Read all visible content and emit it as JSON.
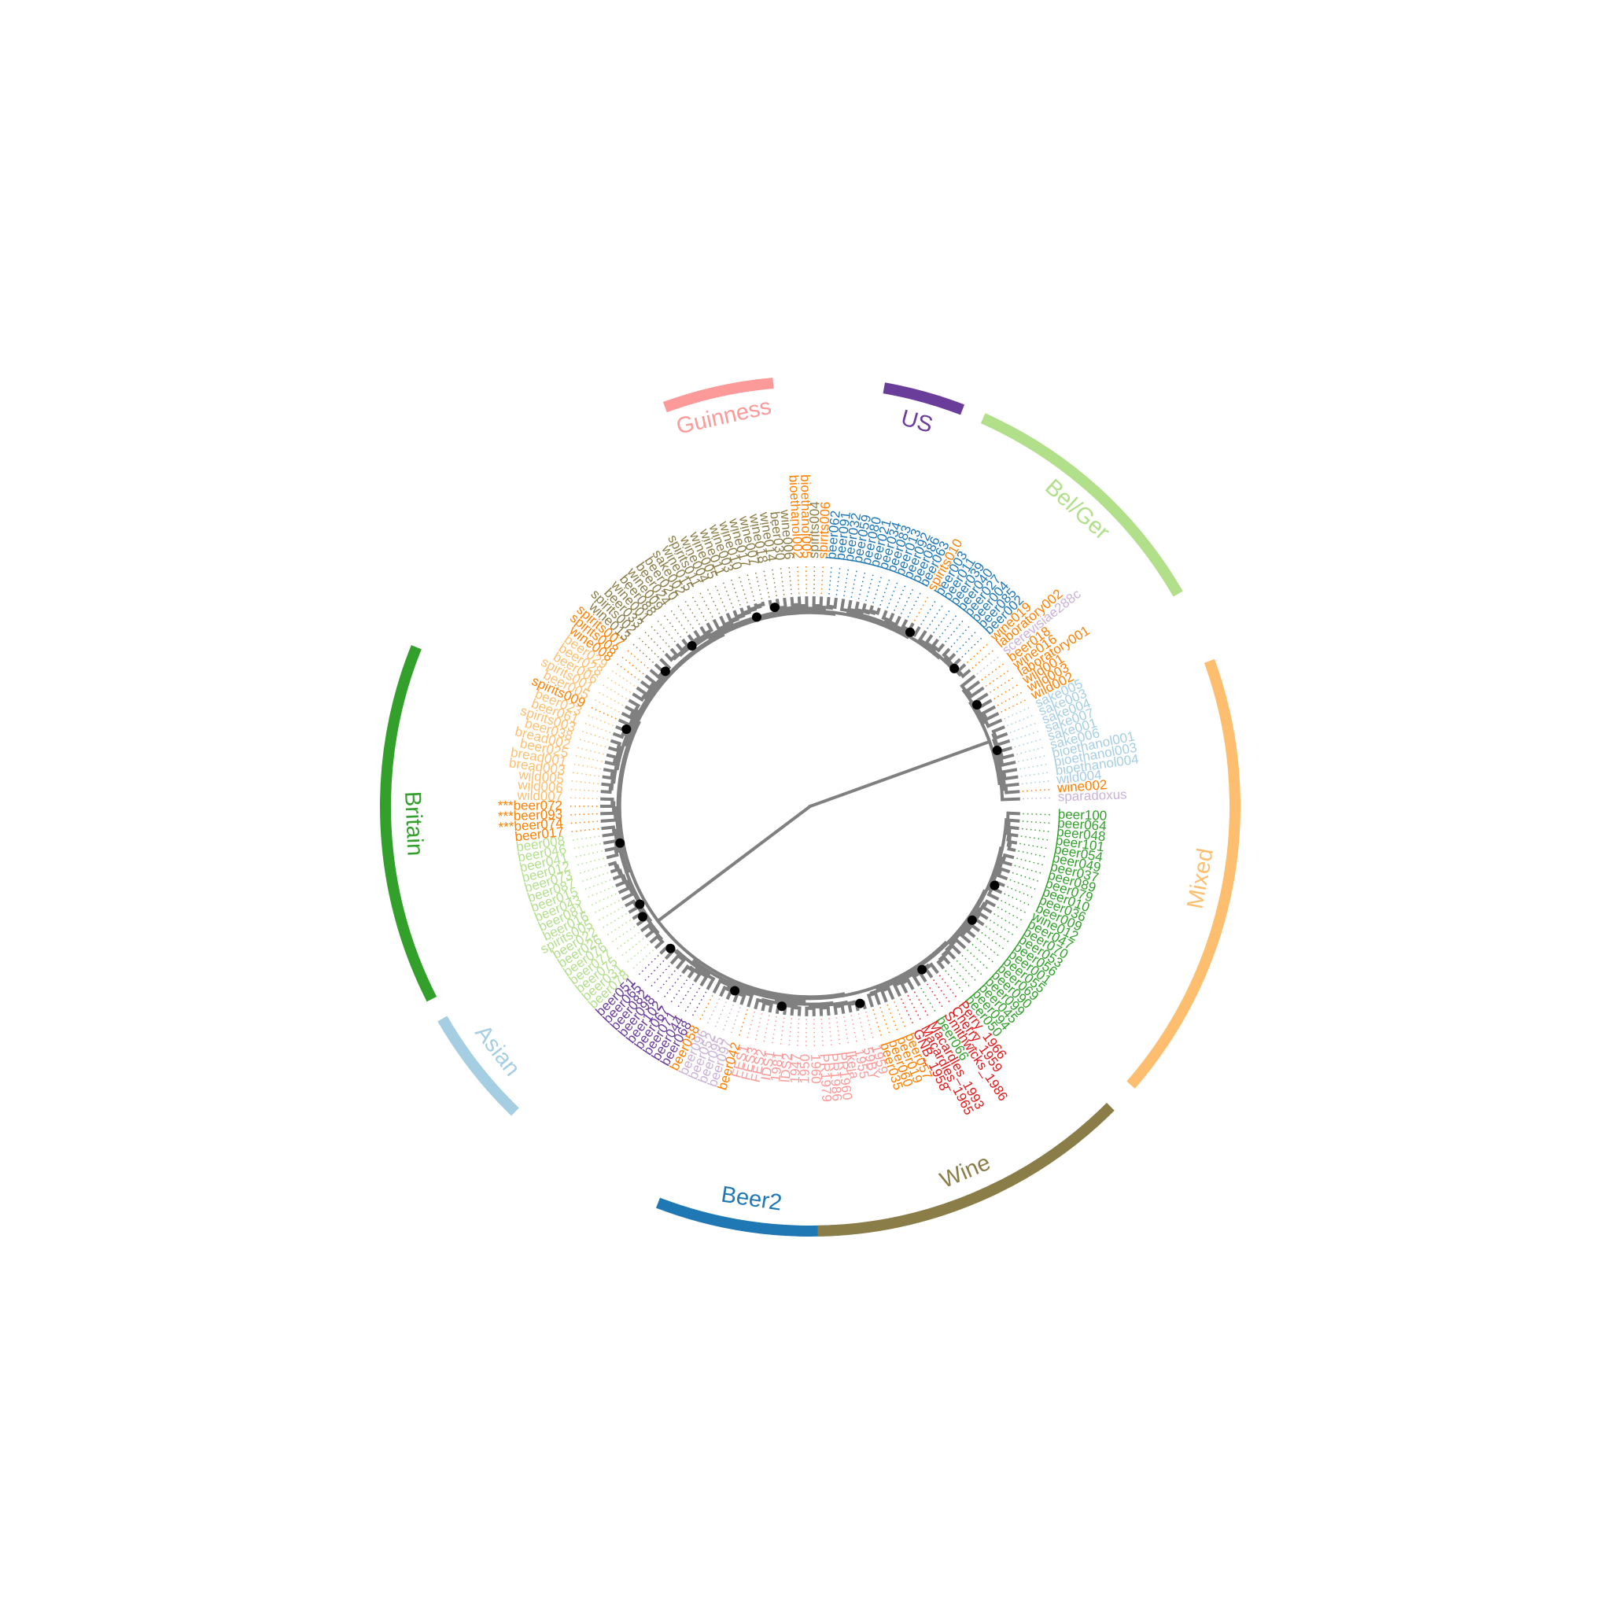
{
  "colors": {
    "branch": "#808080",
    "dot": "#000000",
    "background": "#ffffff"
  },
  "groups": {
    "beer2": {
      "label": "Beer2",
      "color": "#1f78b4"
    },
    "asian": {
      "label": "Asian",
      "color": "#a6cee3"
    },
    "britain": {
      "label": "Britain",
      "color": "#33a02c"
    },
    "guinness": {
      "label": "Guinness",
      "color": "#fb9a99"
    },
    "us": {
      "label": "US",
      "color": "#6a3d9a"
    },
    "belger": {
      "label": "Bel/Ger",
      "color": "#b2df8a"
    },
    "mixed": {
      "label": "Mixed",
      "color": "#fdbf6f"
    },
    "wine": {
      "label": "Wine",
      "color": "#8b7d48"
    }
  },
  "clade_arcs": [
    {
      "group": "beer2",
      "from": 86,
      "to": 111
    },
    {
      "group": "asian",
      "from": 134,
      "to": 150
    },
    {
      "group": "britain",
      "from": 153,
      "to": 202
    },
    {
      "group": "guinness",
      "from": 250,
      "to": 265
    },
    {
      "group": "us",
      "from": 280,
      "to": 291
    },
    {
      "group": "belger",
      "from": 294,
      "to": 330
    },
    {
      "group": "mixed",
      "from": 340,
      "to": 401
    },
    {
      "group": "wine",
      "from": 405,
      "to": 449
    }
  ],
  "leaves": [
    {
      "name": "beer100",
      "c": "britain"
    },
    {
      "name": "beer064",
      "c": "britain"
    },
    {
      "name": "beer048",
      "c": "britain"
    },
    {
      "name": "beer101",
      "c": "britain"
    },
    {
      "name": "beer054",
      "c": "britain"
    },
    {
      "name": "beer049",
      "c": "britain"
    },
    {
      "name": "beer037",
      "c": "britain"
    },
    {
      "name": "beer089",
      "c": "britain"
    },
    {
      "name": "beer079",
      "c": "britain"
    },
    {
      "name": "beer010",
      "c": "britain"
    },
    {
      "name": "beer036",
      "c": "britain"
    },
    {
      "name": "beer009",
      "c": "britain"
    },
    {
      "name": "wine012",
      "c": "britain"
    },
    {
      "name": "beer047",
      "c": "britain"
    },
    {
      "name": "beer070",
      "c": "britain"
    },
    {
      "name": "beer053",
      "c": "britain"
    },
    {
      "name": "beer056",
      "c": "britain"
    },
    {
      "name": "beer001",
      "c": "britain"
    },
    {
      "name": "beer055",
      "c": "britain"
    },
    {
      "name": "beer069",
      "c": "britain"
    },
    {
      "name": "beer090",
      "c": "britain"
    },
    {
      "name": "beer099",
      "c": "britain"
    },
    {
      "name": "beer045",
      "c": "britain"
    },
    {
      "name": "beer094",
      "c": "britain"
    },
    {
      "name": "beer050",
      "c": "britain"
    },
    {
      "name": "Perry_1966",
      "c": "red"
    },
    {
      "name": "Cherry_1959",
      "c": "red"
    },
    {
      "name": "Smithwicks_1986",
      "c": "red"
    },
    {
      "name": "beer066",
      "c": "britain"
    },
    {
      "name": "Macardles_1993",
      "c": "red"
    },
    {
      "name": "Macardles_1965",
      "c": "red"
    },
    {
      "name": "GNB_1958",
      "c": "red"
    },
    {
      "name": "beer057",
      "c": "orange"
    },
    {
      "name": "beer019",
      "c": "orange"
    },
    {
      "name": "beer060",
      "c": "orange"
    },
    {
      "name": "beer035",
      "c": "orange"
    },
    {
      "name": "1959",
      "c": "guinness"
    },
    {
      "name": "59BY",
      "c": "guinness"
    },
    {
      "name": "1955",
      "c": "guinness"
    },
    {
      "name": "Ikeja",
      "c": "guinness"
    },
    {
      "name": "PR1960",
      "c": "guinness"
    },
    {
      "name": "PR1986",
      "c": "guinness"
    },
    {
      "name": "PR1979",
      "c": "guinness"
    },
    {
      "name": "1960",
      "c": "guinness"
    },
    {
      "name": "1950",
      "c": "guinness"
    },
    {
      "name": "1947",
      "c": "guinness"
    },
    {
      "name": "IDS2",
      "c": "guinness"
    },
    {
      "name": "1981",
      "c": "guinness"
    },
    {
      "name": "IDS1",
      "c": "guinness"
    },
    {
      "name": "FES2",
      "c": "guinness"
    },
    {
      "name": "FES3",
      "c": "guinness"
    },
    {
      "name": "FES1",
      "c": "guinness"
    },
    {
      "name": "beer042",
      "c": "orange"
    },
    {
      "name": "beer097",
      "c": "lavender"
    },
    {
      "name": "beer095",
      "c": "lavender"
    },
    {
      "name": "beer052",
      "c": "lavender"
    },
    {
      "name": "beer096",
      "c": "lavender"
    },
    {
      "name": "beer058",
      "c": "orange"
    },
    {
      "name": "beer068",
      "c": "us"
    },
    {
      "name": "beer044",
      "c": "us"
    },
    {
      "name": "beer071",
      "c": "us"
    },
    {
      "name": "beer067",
      "c": "us"
    },
    {
      "name": "beer102",
      "c": "us"
    },
    {
      "name": "beer098",
      "c": "us"
    },
    {
      "name": "beer082",
      "c": "us"
    },
    {
      "name": "beer065",
      "c": "us"
    },
    {
      "name": "beer051",
      "c": "us"
    },
    {
      "name": "beer078",
      "c": "belger"
    },
    {
      "name": "beer031",
      "c": "belger"
    },
    {
      "name": "beer075",
      "c": "belger"
    },
    {
      "name": "beer077",
      "c": "belger"
    },
    {
      "name": "beer076",
      "c": "belger"
    },
    {
      "name": "beer026",
      "c": "belger"
    },
    {
      "name": "beer022",
      "c": "belger"
    },
    {
      "name": "spirits005",
      "c": "belger"
    },
    {
      "name": "beer016",
      "c": "belger"
    },
    {
      "name": "beer081",
      "c": "belger"
    },
    {
      "name": "beer043",
      "c": "belger"
    },
    {
      "name": "beer015",
      "c": "belger"
    },
    {
      "name": "beer087",
      "c": "belger"
    },
    {
      "name": "beer073",
      "c": "belger"
    },
    {
      "name": "beer012",
      "c": "belger"
    },
    {
      "name": "beer041",
      "c": "belger"
    },
    {
      "name": "beer046",
      "c": "belger"
    },
    {
      "name": "beer008",
      "c": "belger"
    },
    {
      "name": "beer017",
      "c": "orange"
    },
    {
      "name": "***beer074",
      "c": "orange"
    },
    {
      "name": "***beer093",
      "c": "orange"
    },
    {
      "name": "***beer072",
      "c": "orange"
    },
    {
      "name": "wild007",
      "c": "mixed"
    },
    {
      "name": "wild006",
      "c": "mixed"
    },
    {
      "name": "wild005",
      "c": "mixed"
    },
    {
      "name": "bread003",
      "c": "mixed"
    },
    {
      "name": "bread001",
      "c": "mixed"
    },
    {
      "name": "beer025",
      "c": "mixed"
    },
    {
      "name": "bread002",
      "c": "mixed"
    },
    {
      "name": "beer038",
      "c": "mixed"
    },
    {
      "name": "spirits003",
      "c": "mixed"
    },
    {
      "name": "beer061",
      "c": "mixed"
    },
    {
      "name": "beer023",
      "c": "mixed"
    },
    {
      "name": "spirits009",
      "c": "orange"
    },
    {
      "name": "beer005",
      "c": "mixed"
    },
    {
      "name": "spirits001",
      "c": "mixed"
    },
    {
      "name": "beer006",
      "c": "mixed"
    },
    {
      "name": "beer028",
      "c": "mixed"
    },
    {
      "name": "beer029",
      "c": "mixed"
    },
    {
      "name": "wine008",
      "c": "orange"
    },
    {
      "name": "spirits008",
      "c": "orange"
    },
    {
      "name": "spirits007",
      "c": "orange"
    },
    {
      "name": "wine013",
      "c": "wine"
    },
    {
      "name": "spirits002",
      "c": "wine"
    },
    {
      "name": "beer033",
      "c": "wine"
    },
    {
      "name": "wine001",
      "c": "wine"
    },
    {
      "name": "beer088",
      "c": "wine"
    },
    {
      "name": "wine009",
      "c": "wine"
    },
    {
      "name": "beer024",
      "c": "wine"
    },
    {
      "name": "beer020",
      "c": "wine"
    },
    {
      "name": "sake002",
      "c": "wine"
    },
    {
      "name": "wine015",
      "c": "wine"
    },
    {
      "name": "spirits011",
      "c": "wine"
    },
    {
      "name": "wine004",
      "c": "wine"
    },
    {
      "name": "wine005",
      "c": "wine"
    },
    {
      "name": "wine011",
      "c": "wine"
    },
    {
      "name": "wine003",
      "c": "wine"
    },
    {
      "name": "wine010",
      "c": "wine"
    },
    {
      "name": "wine017",
      "c": "wine"
    },
    {
      "name": "wine007",
      "c": "wine"
    },
    {
      "name": "wine018",
      "c": "wine"
    },
    {
      "name": "wine014",
      "c": "wine"
    },
    {
      "name": "beer030",
      "c": "wine"
    },
    {
      "name": "wine006",
      "c": "wine"
    },
    {
      "name": "bioethanol002",
      "c": "orange"
    },
    {
      "name": "bioethanol005",
      "c": "orange"
    },
    {
      "name": "spirits004",
      "c": "wine"
    },
    {
      "name": "spirits006",
      "c": "orange"
    },
    {
      "name": "beer062",
      "c": "beer2"
    },
    {
      "name": "beer091",
      "c": "beer2"
    },
    {
      "name": "beer032",
      "c": "beer2"
    },
    {
      "name": "beer059",
      "c": "beer2"
    },
    {
      "name": "beer080",
      "c": "beer2"
    },
    {
      "name": "beer021",
      "c": "beer2"
    },
    {
      "name": "beer034",
      "c": "beer2"
    },
    {
      "name": "beer083",
      "c": "beer2"
    },
    {
      "name": "beer013",
      "c": "beer2"
    },
    {
      "name": "beer092",
      "c": "beer2"
    },
    {
      "name": "beer086",
      "c": "beer2"
    },
    {
      "name": "beer063",
      "c": "beer2"
    },
    {
      "name": "spirits010",
      "c": "orange"
    },
    {
      "name": "beer003",
      "c": "beer2"
    },
    {
      "name": "beer011",
      "c": "beer2"
    },
    {
      "name": "beer039",
      "c": "beer2"
    },
    {
      "name": "beer040",
      "c": "beer2"
    },
    {
      "name": "beer027",
      "c": "beer2"
    },
    {
      "name": "beer004",
      "c": "beer2"
    },
    {
      "name": "beer085",
      "c": "beer2"
    },
    {
      "name": "beer002",
      "c": "beer2"
    },
    {
      "name": "wine019",
      "c": "orange"
    },
    {
      "name": "laboratory002",
      "c": "orange"
    },
    {
      "name": "scerevisiae288c",
      "c": "lavender"
    },
    {
      "name": "beer018",
      "c": "orange"
    },
    {
      "name": "wine016",
      "c": "orange"
    },
    {
      "name": "laboratory001",
      "c": "orange"
    },
    {
      "name": "wild001",
      "c": "orange"
    },
    {
      "name": "wild003",
      "c": "orange"
    },
    {
      "name": "wild002",
      "c": "orange"
    },
    {
      "name": "sake005",
      "c": "asian"
    },
    {
      "name": "sake003",
      "c": "asian"
    },
    {
      "name": "sake004",
      "c": "asian"
    },
    {
      "name": "sake007",
      "c": "asian"
    },
    {
      "name": "sake001",
      "c": "asian"
    },
    {
      "name": "sake006",
      "c": "asian"
    },
    {
      "name": "bioethanol001",
      "c": "asian"
    },
    {
      "name": "bioethanol003",
      "c": "asian"
    },
    {
      "name": "bioethanol004",
      "c": "asian"
    },
    {
      "name": "wild004",
      "c": "asian"
    },
    {
      "name": "wine002",
      "c": "orange"
    },
    {
      "name": "sparadoxus",
      "c": "lavender"
    }
  ],
  "leaf_colors": {
    "britain": "#33a02c",
    "red": "#e31a1c",
    "orange": "#ff7f00",
    "guinness": "#fb9a99",
    "lavender": "#cab2d6",
    "us": "#6a3d9a",
    "belger": "#b2df8a",
    "mixed": "#fdbf6f",
    "wine": "#8b7d48",
    "beer2": "#1f78b4",
    "asian": "#a6cee3"
  }
}
